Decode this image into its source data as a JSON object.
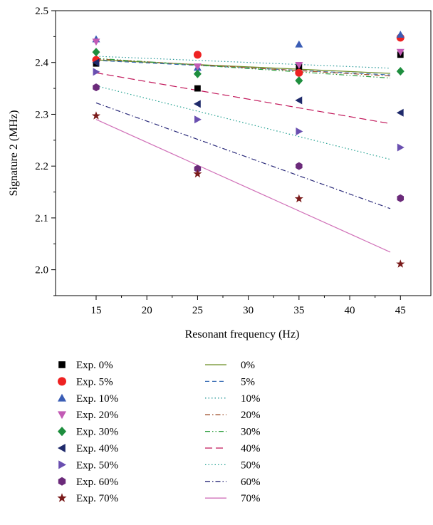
{
  "chart_data": {
    "type": "scatter",
    "xlabel": "Resonant frequency (Hz)",
    "ylabel": "Signature 2 (MHz)",
    "xlim": [
      11,
      48
    ],
    "ylim": [
      1.95,
      2.5
    ],
    "xticks": [
      15,
      20,
      25,
      30,
      35,
      40,
      45
    ],
    "yticks": [
      2.0,
      2.1,
      2.2,
      2.3,
      2.4,
      2.5
    ],
    "x": [
      15,
      25,
      35,
      45
    ],
    "grid": false,
    "legend_position": "below",
    "series": [
      {
        "name": "Exp. 0%",
        "marker": "square",
        "color": "#000000",
        "values": [
          2.398,
          2.35,
          2.392,
          2.415
        ]
      },
      {
        "name": "Exp. 5%",
        "marker": "circle",
        "color": "#ee2222",
        "values": [
          2.405,
          2.415,
          2.38,
          2.448
        ]
      },
      {
        "name": "Exp. 10%",
        "marker": "triangle-up",
        "color": "#3a5db5",
        "values": [
          2.445,
          2.39,
          2.435,
          2.454
        ]
      },
      {
        "name": "Exp. 20%",
        "marker": "triangle-down",
        "color": "#c25bb5",
        "values": [
          2.44,
          2.392,
          2.395,
          2.42
        ]
      },
      {
        "name": "Exp. 30%",
        "marker": "diamond",
        "color": "#1e8e3e",
        "values": [
          2.42,
          2.378,
          2.365,
          2.383
        ]
      },
      {
        "name": "Exp. 40%",
        "marker": "triangle-left",
        "color": "#1f2a6b",
        "values": [
          2.4,
          2.32,
          2.327,
          2.303
        ]
      },
      {
        "name": "Exp. 50%",
        "marker": "triangle-right",
        "color": "#6a4fb0",
        "values": [
          2.382,
          2.29,
          2.267,
          2.236
        ]
      },
      {
        "name": "Exp. 60%",
        "marker": "hexagon",
        "color": "#6b2a7a",
        "values": [
          2.352,
          2.195,
          2.2,
          2.138
        ]
      },
      {
        "name": "Exp. 70%",
        "marker": "star",
        "color": "#7a1a1a",
        "values": [
          2.297,
          2.185,
          2.137,
          2.011
        ]
      }
    ],
    "fits": [
      {
        "name": "0%",
        "dash": "solid",
        "color": "#6b8e23",
        "x": [
          15,
          44
        ],
        "values": [
          2.405,
          2.379
        ]
      },
      {
        "name": "5%",
        "dash": "dash",
        "color": "#3a6eb5",
        "x": [
          15,
          44
        ],
        "values": [
          2.404,
          2.376
        ]
      },
      {
        "name": "10%",
        "dash": "dot",
        "color": "#2a9a9a",
        "x": [
          15,
          44
        ],
        "values": [
          2.412,
          2.389
        ]
      },
      {
        "name": "20%",
        "dash": "dashdot",
        "color": "#a0522d",
        "x": [
          15,
          44
        ],
        "values": [
          2.407,
          2.374
        ]
      },
      {
        "name": "30%",
        "dash": "dashdotdot",
        "color": "#2e9e3e",
        "x": [
          15,
          44
        ],
        "values": [
          2.408,
          2.37
        ]
      },
      {
        "name": "40%",
        "dash": "longdash",
        "color": "#c2185b",
        "x": [
          15,
          44
        ],
        "values": [
          2.38,
          2.282
        ]
      },
      {
        "name": "50%",
        "dash": "dot",
        "color": "#20a090",
        "x": [
          15,
          44
        ],
        "values": [
          2.355,
          2.213
        ]
      },
      {
        "name": "60%",
        "dash": "dashdot",
        "color": "#2a2a7a",
        "x": [
          15,
          44
        ],
        "values": [
          2.322,
          2.118
        ]
      },
      {
        "name": "70%",
        "dash": "solid",
        "color": "#d070b8",
        "x": [
          15,
          44
        ],
        "values": [
          2.29,
          2.034
        ]
      }
    ]
  }
}
